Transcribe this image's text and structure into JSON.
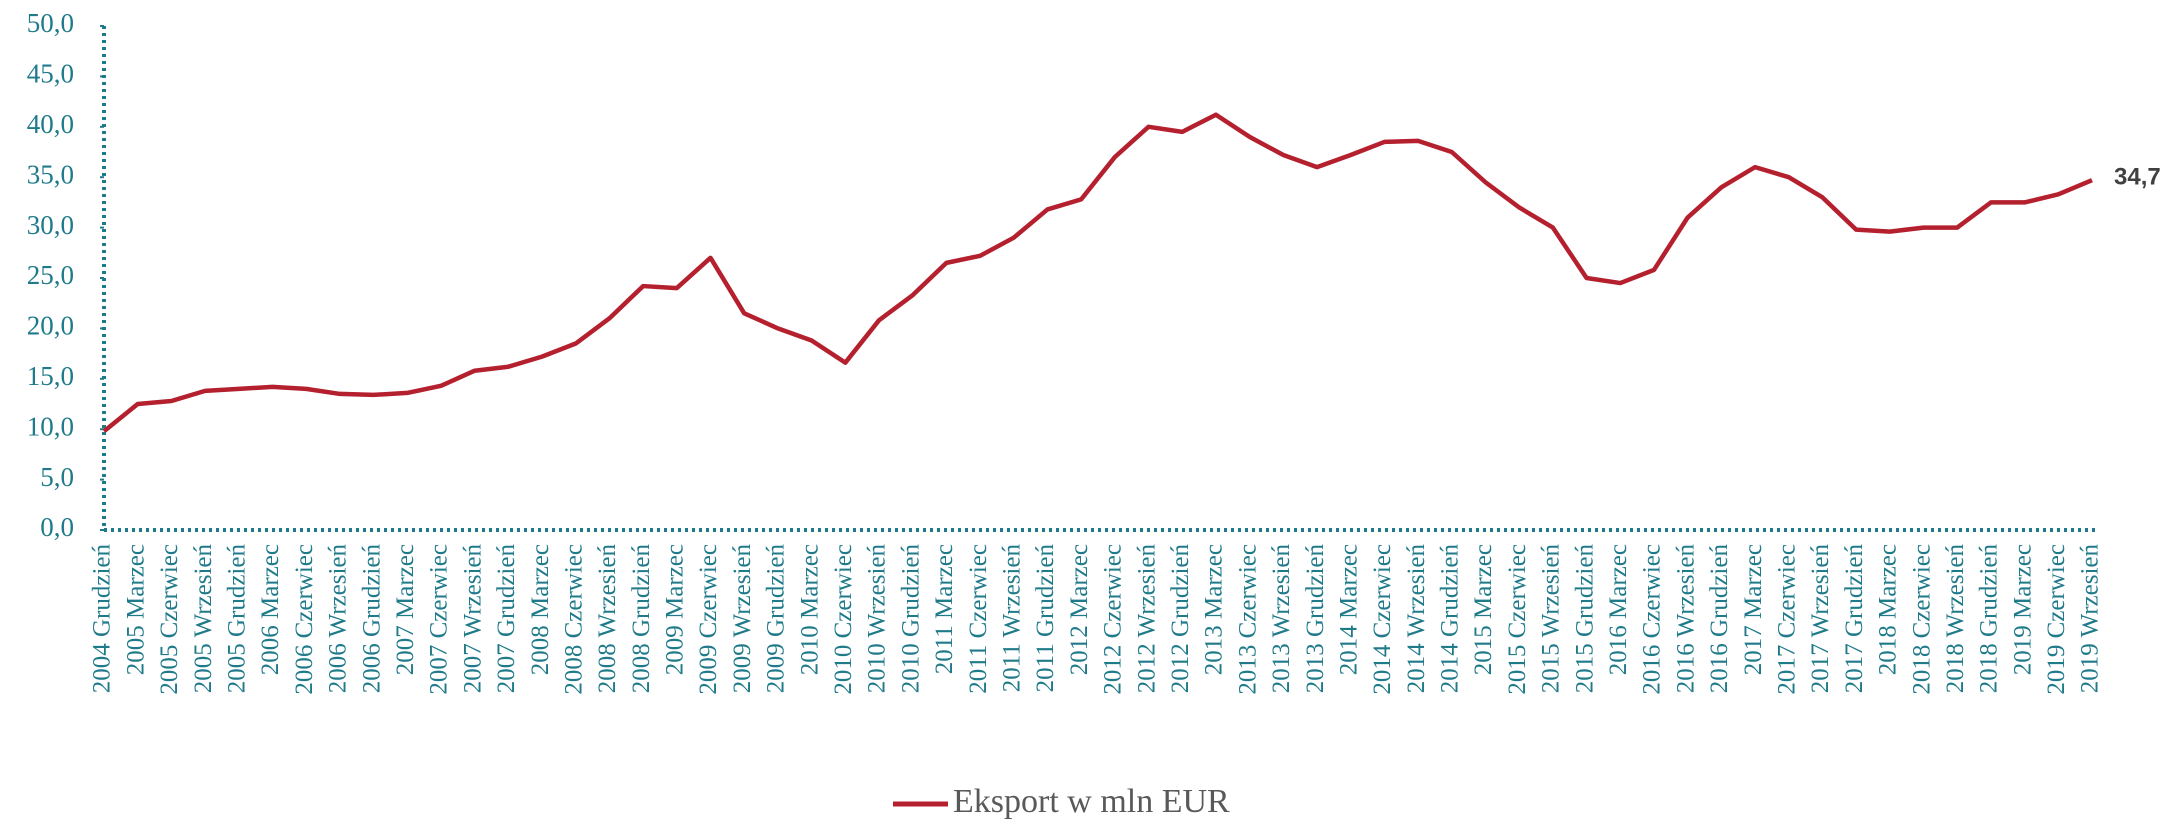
{
  "chart_data": {
    "type": "line",
    "categories": [
      "2004 Grudzień",
      "2005 Marzec",
      "2005 Czerwiec",
      "2005 Wrzesień",
      "2005 Grudzień",
      "2006 Marzec",
      "2006 Czerwiec",
      "2006 Wrzesień",
      "2006 Grudzień",
      "2007 Marzec",
      "2007 Czerwiec",
      "2007 Wrzesień",
      "2007 Grudzień",
      "2008 Marzec",
      "2008 Czerwiec",
      "2008 Wrzesień",
      "2008 Grudzień",
      "2009 Marzec",
      "2009 Czerwiec",
      "2009 Wrzesień",
      "2009 Grudzień",
      "2010 Marzec",
      "2010 Czerwiec",
      "2010 Wrzesień",
      "2010 Grudzień",
      "2011 Marzec",
      "2011 Czerwiec",
      "2011 Wrzesień",
      "2011 Grudzień",
      "2012 Marzec",
      "2012 Czerwiec",
      "2012 Wrzesień",
      "2012 Grudzień",
      "2013 Marzec",
      "2013 Czerwiec",
      "2013 Wrzesień",
      "2013 Grudzień",
      "2014 Marzec",
      "2014 Czerwiec",
      "2014 Wrzesień",
      "2014 Grudzień",
      "2015 Marzec",
      "2015 Czerwiec",
      "2015 Wrzesień",
      "2015 Grudzień",
      "2016 Marzec",
      "2016 Czerwiec",
      "2016 Wrzesień",
      "2016 Grudzień",
      "2017 Marzec",
      "2017 Czerwiec",
      "2017 Wrzesień",
      "2017 Grudzień",
      "2018 Marzec",
      "2018 Czerwiec",
      "2018 Wrzesień",
      "2018 Grudzień",
      "2019 Marzec",
      "2019 Czerwiec",
      "2019 Wrzesień"
    ],
    "series": [
      {
        "name": "Eksport w mln EUR",
        "color": "#b5202e",
        "values": [
          9.8,
          12.5,
          12.8,
          13.8,
          14.0,
          14.2,
          14.0,
          13.5,
          13.4,
          13.6,
          14.3,
          15.8,
          16.2,
          17.2,
          18.5,
          21.0,
          24.2,
          24.0,
          27.0,
          21.5,
          20.0,
          18.8,
          16.6,
          20.8,
          23.3,
          26.5,
          27.2,
          29.0,
          31.8,
          32.8,
          37.0,
          40.0,
          39.5,
          41.2,
          39.0,
          37.2,
          36.0,
          37.2,
          38.5,
          38.6,
          37.5,
          34.5,
          32.0,
          30.0,
          25.0,
          24.5,
          25.8,
          31.0,
          34.0,
          36.0,
          35.0,
          33.0,
          29.8,
          29.6,
          30.0,
          30.0,
          32.5,
          32.5,
          33.3,
          34.7
        ],
        "value_labels": [
          null,
          null,
          null,
          null,
          null,
          null,
          null,
          null,
          null,
          null,
          null,
          null,
          null,
          null,
          null,
          null,
          null,
          null,
          null,
          null,
          null,
          null,
          null,
          null,
          null,
          null,
          null,
          null,
          null,
          null,
          null,
          null,
          null,
          null,
          null,
          null,
          null,
          null,
          null,
          null,
          null,
          null,
          null,
          null,
          null,
          null,
          null,
          null,
          null,
          null,
          null,
          null,
          null,
          null,
          null,
          null,
          null,
          null,
          null,
          "34,7"
        ]
      }
    ],
    "ylim": [
      0,
      50
    ],
    "yticks": [
      {
        "value": 0,
        "label": "0,0"
      },
      {
        "value": 5,
        "label": "5,0"
      },
      {
        "value": 10,
        "label": "10,0"
      },
      {
        "value": 15,
        "label": "15,0"
      },
      {
        "value": 20,
        "label": "20,0"
      },
      {
        "value": 25,
        "label": "25,0"
      },
      {
        "value": 30,
        "label": "30,0"
      },
      {
        "value": 35,
        "label": "35,0"
      },
      {
        "value": 40,
        "label": "40,0"
      },
      {
        "value": 45,
        "label": "45,0"
      },
      {
        "value": 50,
        "label": "50,0"
      }
    ],
    "legend": "bottom"
  }
}
